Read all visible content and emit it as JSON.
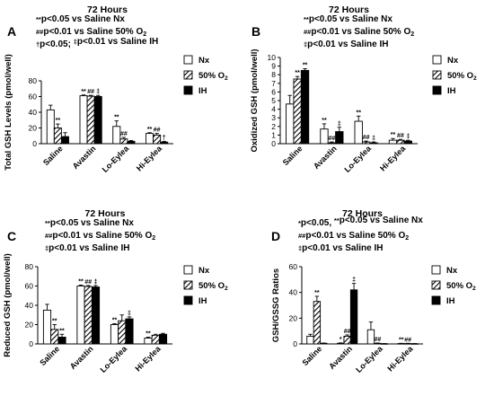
{
  "series_names": [
    "Nx",
    "50% O₂",
    "IH"
  ],
  "chart_data": [
    {
      "type": "bar",
      "panel_label": "A",
      "title": "72 Hours",
      "annotations": [
        "**p<0.05 vs Saline Nx",
        "##p<0.01 vs Saline 50% O₂",
        "†p<0.05; ‡p<0.01 vs Saline IH"
      ],
      "ylabel": "Total GSH Levels (pmol/well)",
      "ylim": [
        0,
        80
      ],
      "yticks": [
        0,
        20,
        40,
        60,
        80
      ],
      "categories": [
        "Saline",
        "Avastin",
        "Lo-Eylea",
        "Hi-Eylea"
      ],
      "legend": "right",
      "series": [
        {
          "name": "Nx",
          "values": [
            43,
            61,
            22,
            13
          ],
          "errors": [
            6,
            1,
            7,
            1
          ],
          "marks": [
            "",
            "**",
            "**",
            "**"
          ]
        },
        {
          "name": "50% O₂",
          "values": [
            20,
            60.5,
            6,
            11
          ],
          "errors": [
            5,
            1,
            2,
            2
          ],
          "marks": [
            "**",
            "##",
            "##",
            "##"
          ]
        },
        {
          "name": "IH",
          "values": [
            9,
            60,
            3,
            2
          ],
          "errors": [
            5,
            1.5,
            1,
            1
          ],
          "marks": [
            "",
            "‡",
            "",
            "†"
          ]
        }
      ]
    },
    {
      "type": "bar",
      "panel_label": "B",
      "title": "72 Hours",
      "annotations": [
        "**p<0.05 vs Saline Nx",
        "##p<0.01 vs Saline 50% O₂",
        "‡p<0.01 vs Saline IH"
      ],
      "ylabel": "Oxidized GSH  (pmol/well)",
      "ylim": [
        0,
        10
      ],
      "yticks": [
        0,
        1,
        2,
        3,
        4,
        5,
        6,
        7,
        8,
        9,
        10
      ],
      "categories": [
        "Saline",
        "Avastin",
        "Lo-Eylea",
        "Hi-Eylea"
      ],
      "legend": "right",
      "series": [
        {
          "name": "Nx",
          "values": [
            4.6,
            1.7,
            2.6,
            0.4
          ],
          "errors": [
            1.0,
            0.6,
            0.6,
            0.2
          ],
          "marks": [
            "",
            "**",
            "**",
            "**"
          ]
        },
        {
          "name": "50% O₂",
          "values": [
            7.5,
            0.1,
            0.2,
            0.4
          ],
          "errors": [
            0.3,
            0.1,
            0.1,
            0.1
          ],
          "marks": [
            "**",
            "##",
            "##",
            "##"
          ]
        },
        {
          "name": "IH",
          "values": [
            8.5,
            1.4,
            0.1,
            0.3
          ],
          "errors": [
            0.2,
            0.5,
            0.1,
            0.1
          ],
          "marks": [
            "**",
            "‡",
            "‡",
            "‡"
          ]
        }
      ]
    },
    {
      "type": "bar",
      "panel_label": "C",
      "title": "72 Hours",
      "annotations": [
        "**p<0.05 vs Saline Nx",
        "##p<0.01 vs Saline 50% O₂",
        "‡p<0.01 vs Saline IH"
      ],
      "ylabel": "Reduced GSH (pmol/well)",
      "ylim": [
        0,
        80
      ],
      "yticks": [
        0,
        20,
        40,
        60,
        80
      ],
      "categories": [
        "Saline",
        "Avastin",
        "Lo-Eylea",
        "Hi-Eylea"
      ],
      "legend": "right",
      "series": [
        {
          "name": "Nx",
          "values": [
            35,
            60,
            20,
            6
          ],
          "errors": [
            6,
            1,
            1,
            1
          ],
          "marks": [
            "",
            "**",
            "**",
            "**"
          ]
        },
        {
          "name": "50% O₂",
          "values": [
            15,
            59.5,
            24,
            9
          ],
          "errors": [
            5,
            1,
            6,
            1
          ],
          "marks": [
            "**",
            "##",
            "",
            ""
          ]
        },
        {
          "name": "IH",
          "values": [
            7,
            59,
            26,
            10
          ],
          "errors": [
            3,
            1.5,
            2,
            1
          ],
          "marks": [
            "**",
            "‡",
            "‡",
            ""
          ]
        }
      ]
    },
    {
      "type": "bar",
      "panel_label": "D",
      "title": "72 Hours",
      "annotations": [
        "*p<0.05, **p<0.05 vs Saline Nx",
        "##p<0.01 vs Saline 50% O₂",
        "‡p<0.01 vs Saline IH"
      ],
      "ylabel": "GSH/GSSG Ratios",
      "ylim": [
        0,
        60
      ],
      "yticks": [
        0,
        20,
        40,
        60
      ],
      "categories": [
        "Saline",
        "Avastin",
        "Lo-Eylea",
        "Hi-Eylea"
      ],
      "legend": "right",
      "series": [
        {
          "name": "Nx",
          "values": [
            6,
            0.5,
            11,
            0.3
          ],
          "errors": [
            1.5,
            0.3,
            6,
            0.2
          ],
          "marks": [
            "",
            "*",
            "",
            "**"
          ]
        },
        {
          "name": "50% O₂",
          "values": [
            33,
            6,
            0.5,
            0.3
          ],
          "errors": [
            4,
            1,
            0.2,
            0.2
          ],
          "marks": [
            "**",
            "##",
            "##",
            "##"
          ]
        },
        {
          "name": "IH",
          "values": [
            0.5,
            42,
            0.2,
            0.2
          ],
          "errors": [
            0.2,
            5,
            0.1,
            0.1
          ],
          "marks": [
            "",
            "‡",
            "",
            ""
          ]
        }
      ]
    }
  ]
}
